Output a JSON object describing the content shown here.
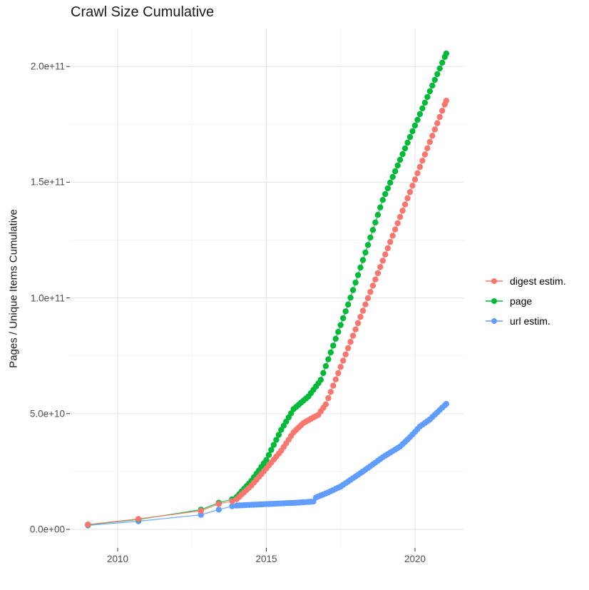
{
  "title": "Crawl Size Cumulative",
  "axes": {
    "x": {
      "tick_labels": [
        "2010",
        "2015",
        "2020"
      ],
      "tick_values": [
        2010,
        2015,
        2020
      ],
      "minor_ticks": [
        2012.5,
        2017.5
      ],
      "range": [
        2008.4,
        2021.65
      ]
    },
    "y": {
      "label": "Pages / Unique Items Cumulative",
      "tick_labels": [
        "2.0e+11",
        "1.5e+11",
        "1.0e+11",
        "5.0e+10",
        "0.0e+00"
      ],
      "tick_values": [
        200000000000.0,
        150000000000.0,
        100000000000.0,
        50000000000.0,
        0
      ],
      "minor_ticks": [
        25000000000.0,
        75000000000.0,
        125000000000.0,
        175000000000.0
      ],
      "range": [
        -8000000000.0,
        218000000000.0
      ]
    }
  },
  "legend": {
    "position": "right",
    "items": [
      {
        "label": "digest estim.",
        "color": "#F8766D"
      },
      {
        "label": "page",
        "color": "#00BA38"
      },
      {
        "label": "url estim.",
        "color": "#619CFF"
      }
    ]
  },
  "colors": {
    "grid_major": "#e7e7e7",
    "grid_minor": "#f3f3f3",
    "axis_text": "#4d4d4d",
    "title_text": "#1a1a1a",
    "tick_mark": "#333333",
    "background": "#ffffff"
  },
  "chart_data": {
    "type": "line",
    "title": "Crawl Size Cumulative",
    "xlabel": "",
    "ylabel": "Pages / Unique Items Cumulative",
    "x_unit": "year",
    "xlim": [
      2008.4,
      2021.65
    ],
    "ylim": [
      0,
      218000000000.0
    ],
    "grid": true,
    "legend_position": "right",
    "sampling": {
      "dense_from": 2014.0,
      "interval_years": 0.0833333,
      "note": "one point per monthly crawl from 2014 onward; sparse crawls before 2014"
    },
    "series": [
      {
        "name": "digest estim.",
        "color": "#F8766D",
        "anchors": [
          [
            2009.0,
            2100000000.0
          ],
          [
            2010.7,
            4500000000.0
          ],
          [
            2012.8,
            8000000000.0
          ],
          [
            2013.4,
            11000000000.0
          ],
          [
            2013.85,
            12200000000.0
          ],
          [
            2014.0,
            13000000000.0
          ],
          [
            2014.5,
            19000000000.0
          ],
          [
            2015.0,
            26300000000.0
          ],
          [
            2015.5,
            34000000000.0
          ],
          [
            2015.92,
            42000000000.0
          ],
          [
            2016.25,
            46000000000.0
          ],
          [
            2016.75,
            49500000000.0
          ],
          [
            2017.0,
            54000000000.0
          ],
          [
            2021.05,
            185200000000.0
          ]
        ]
      },
      {
        "name": "page",
        "color": "#00BA38",
        "anchors": [
          [
            2009.0,
            2000000000.0
          ],
          [
            2010.7,
            4300000000.0
          ],
          [
            2012.8,
            8500000000.0
          ],
          [
            2013.4,
            11500000000.0
          ],
          [
            2013.85,
            13000000000.0
          ],
          [
            2014.0,
            14000000000.0
          ],
          [
            2014.5,
            21000000000.0
          ],
          [
            2015.0,
            30000000000.0
          ],
          [
            2015.5,
            43000000000.0
          ],
          [
            2015.92,
            52000000000.0
          ],
          [
            2016.42,
            57500000000.0
          ],
          [
            2016.83,
            64500000000.0
          ],
          [
            2017.83,
            100000000000.0
          ],
          [
            2018.92,
            142500000000.0
          ],
          [
            2021.05,
            205600000000.0
          ]
        ]
      },
      {
        "name": "url estim.",
        "color": "#619CFF",
        "anchors": [
          [
            2009.0,
            1700000000.0
          ],
          [
            2010.7,
            3500000000.0
          ],
          [
            2012.8,
            6300000000.0
          ],
          [
            2013.4,
            8500000000.0
          ],
          [
            2013.85,
            10000000000.0
          ],
          [
            2014.0,
            10300000000.0
          ],
          [
            2016.0,
            11500000000.0
          ],
          [
            2016.58,
            12000000000.0
          ],
          [
            2016.67,
            13800000000.0
          ],
          [
            2017.0,
            15500000000.0
          ],
          [
            2017.5,
            18500000000.0
          ],
          [
            2018.25,
            25000000000.0
          ],
          [
            2018.92,
            31200000000.0
          ],
          [
            2019.5,
            35800000000.0
          ],
          [
            2019.83,
            39800000000.0
          ],
          [
            2020.17,
            44500000000.0
          ],
          [
            2020.5,
            47500000000.0
          ],
          [
            2021.05,
            54200000000.0
          ]
        ]
      }
    ]
  }
}
